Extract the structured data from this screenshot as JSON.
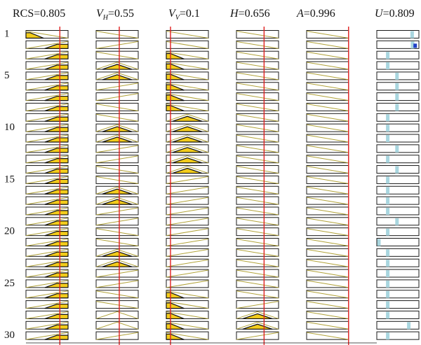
{
  "figure": {
    "rows": 30,
    "row_labels": [
      "1",
      "5",
      "10",
      "15",
      "20",
      "25",
      "30"
    ],
    "columns": [
      {
        "key": "rcs",
        "label_main": "RCS",
        "label_sub": "",
        "label_value": "=0.805",
        "value": 0.805
      },
      {
        "key": "vh",
        "label_main": "V",
        "label_sub": "H",
        "label_value": "=0.55",
        "value": 0.55
      },
      {
        "key": "vv",
        "label_main": "V",
        "label_sub": "V",
        "label_value": "=0.1",
        "value": 0.1
      },
      {
        "key": "h",
        "label_main": "H",
        "label_sub": "",
        "label_value": "=0.656",
        "value": 0.656
      },
      {
        "key": "a",
        "label_main": "A",
        "label_sub": "",
        "label_value": "=0.996",
        "value": 0.996
      },
      {
        "key": "u",
        "label_main": "U",
        "label_sub": "",
        "label_value": "=0.809",
        "value": 0.809
      }
    ],
    "colors": {
      "fill": "#f2cc1c",
      "value_line": "#e02020",
      "guide": "#b1a33a",
      "output_bar": "#a9d6df",
      "output_marker": "#2040c8"
    },
    "rules": {
      "rcs": [
        "low",
        "high",
        "high",
        "high",
        "high",
        "high",
        "high",
        "high",
        "high",
        "high",
        "high",
        "high",
        "high",
        "high",
        "high",
        "high",
        "high",
        "high",
        "high",
        "high",
        "high",
        "high",
        "high",
        "high",
        "high",
        "high",
        "high",
        "high",
        "high",
        "high"
      ],
      "vh": [
        "low",
        "high",
        "low",
        "mid",
        "mid",
        "high",
        "high",
        "low",
        "low",
        "mid",
        "mid",
        "high",
        "high",
        "low",
        "low",
        "mid",
        "mid",
        "high",
        "high",
        "low",
        "low",
        "mid",
        "mid",
        "high",
        "high",
        "low",
        "low",
        "mid",
        "mid",
        "high"
      ],
      "vv": [
        "low",
        "low",
        "low",
        "low",
        "low",
        "low",
        "low",
        "low",
        "mid",
        "mid",
        "mid",
        "mid",
        "mid",
        "mid",
        "high",
        "high",
        "high",
        "high",
        "high",
        "high",
        "high",
        "high",
        "high",
        "high",
        "high",
        "low",
        "low",
        "low",
        "low",
        "low"
      ],
      "h": [
        "low",
        "low",
        "low",
        "low",
        "low",
        "low",
        "low",
        "low",
        "low",
        "low",
        "low",
        "low",
        "low",
        "low",
        "low",
        "low",
        "low",
        "low",
        "low",
        "low",
        "low",
        "low",
        "low",
        "low",
        "low",
        "low",
        "high",
        "mid",
        "mid",
        "high"
      ],
      "a": [
        "low",
        "low",
        "low",
        "low",
        "low",
        "low",
        "low",
        "low",
        "low",
        "low",
        "low",
        "low",
        "low",
        "low",
        "low",
        "low",
        "low",
        "low",
        "low",
        "low",
        "low",
        "low",
        "low",
        "low",
        "low",
        "low",
        "low",
        "low",
        "low",
        "low"
      ],
      "u": [
        0.84,
        0.85,
        0.26,
        0.26,
        0.48,
        0.48,
        0.48,
        0.48,
        0.26,
        0.26,
        0.26,
        0.48,
        0.26,
        0.48,
        0.26,
        0.26,
        0.26,
        0.26,
        0.48,
        0.26,
        0.05,
        0.26,
        0.26,
        0.26,
        0.26,
        0.26,
        0.26,
        0.26,
        0.76,
        0.26
      ]
    },
    "active": {
      "rcs": [
        1,
        1,
        1,
        1,
        1,
        1,
        1,
        1,
        1,
        1,
        1,
        1,
        1,
        1,
        1,
        1,
        1,
        1,
        1,
        1,
        1,
        1,
        1,
        1,
        1,
        1,
        1,
        1,
        1,
        1
      ],
      "vh": [
        0,
        0,
        0,
        1,
        1,
        0,
        0,
        0,
        0,
        1,
        1,
        0,
        0,
        0,
        0,
        1,
        1,
        0,
        0,
        0,
        0,
        1,
        1,
        0,
        0,
        0,
        0,
        0,
        0,
        0
      ],
      "vv": [
        0,
        0,
        1,
        1,
        1,
        1,
        1,
        1,
        1,
        1,
        1,
        1,
        1,
        1,
        0,
        0,
        0,
        0,
        0,
        0,
        0,
        0,
        0,
        0,
        0,
        1,
        1,
        1,
        1,
        1
      ],
      "h": [
        0,
        0,
        0,
        0,
        0,
        0,
        0,
        0,
        0,
        0,
        0,
        0,
        0,
        0,
        0,
        0,
        0,
        0,
        0,
        0,
        0,
        0,
        0,
        0,
        0,
        0,
        0,
        1,
        1,
        0
      ],
      "a": [
        0,
        0,
        0,
        0,
        0,
        0,
        0,
        0,
        0,
        0,
        0,
        0,
        0,
        0,
        0,
        0,
        0,
        0,
        0,
        0,
        0,
        0,
        0,
        0,
        0,
        0,
        0,
        0,
        0,
        0
      ]
    },
    "blue_markers": [
      2
    ]
  }
}
